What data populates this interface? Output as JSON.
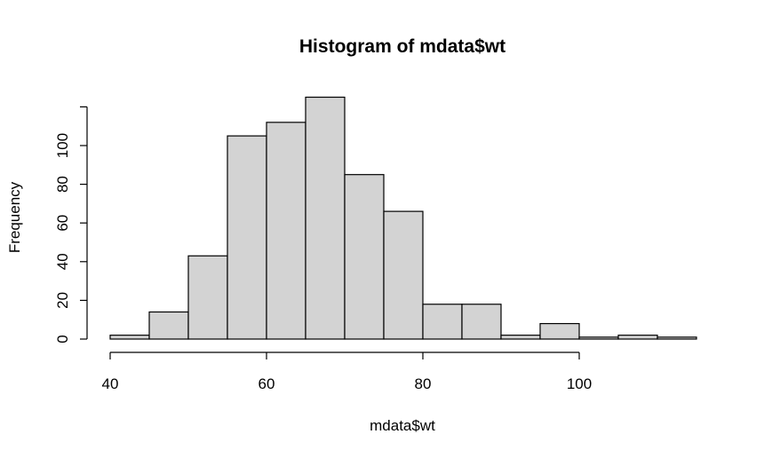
{
  "chart_data": {
    "type": "bar",
    "title": "Histogram of mdata$wt",
    "xlabel": "mdata$wt",
    "ylabel": "Frequency",
    "bin_width": 5,
    "bins": [
      {
        "start": 40,
        "end": 45,
        "count": 2
      },
      {
        "start": 45,
        "end": 50,
        "count": 14
      },
      {
        "start": 50,
        "end": 55,
        "count": 43
      },
      {
        "start": 55,
        "end": 60,
        "count": 105
      },
      {
        "start": 60,
        "end": 65,
        "count": 112
      },
      {
        "start": 65,
        "end": 70,
        "count": 125
      },
      {
        "start": 70,
        "end": 75,
        "count": 85
      },
      {
        "start": 75,
        "end": 80,
        "count": 66
      },
      {
        "start": 80,
        "end": 85,
        "count": 18
      },
      {
        "start": 85,
        "end": 90,
        "count": 18
      },
      {
        "start": 90,
        "end": 95,
        "count": 2
      },
      {
        "start": 95,
        "end": 100,
        "count": 8
      },
      {
        "start": 100,
        "end": 105,
        "count": 1
      },
      {
        "start": 105,
        "end": 110,
        "count": 2
      },
      {
        "start": 110,
        "end": 115,
        "count": 1
      }
    ],
    "xlim": [
      40,
      115
    ],
    "ylim": [
      0,
      125
    ],
    "x_ticks": [
      40,
      60,
      80,
      100
    ],
    "y_ticks": [
      0,
      20,
      40,
      60,
      80,
      100
    ],
    "bar_fill": "#d3d3d3",
    "bar_stroke": "#000000",
    "grid": false
  }
}
